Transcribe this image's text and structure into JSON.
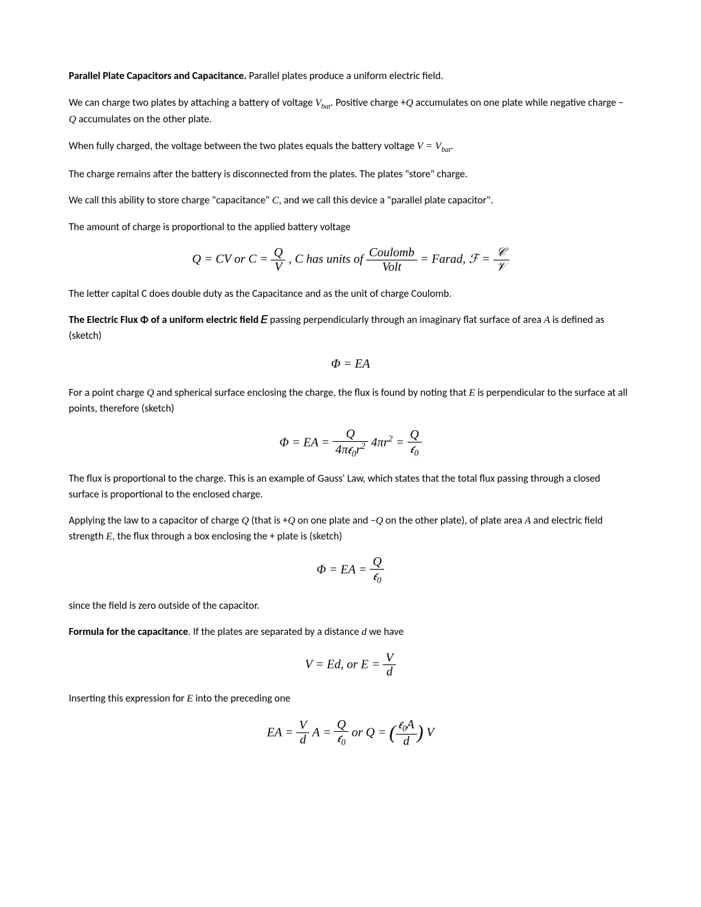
{
  "title_bold": "Parallel Plate Capacitors and Capacitance.",
  "title_rest": "  Parallel plates produce a uniform electric field.",
  "p1_a": "We can charge two plates by attaching a battery of voltage ",
  "p1_v": "V",
  "p1_sub": "bat",
  "p1_b": ".   Positive charge +",
  "p1_q": "Q",
  "p1_c": " accumulates on one plate while negative charge − ",
  "p1_d": " accumulates on the other plate.",
  "p2_a": "When fully charged, the voltage between the two plates equals the battery voltage ",
  "p2_eq": "V = V",
  "p2_b": ".",
  "p3": "The charge remains after the battery is disconnected from the plates.  The plates \"store\" charge.",
  "p4_a": "We call this ability to store charge \"capacitance\" ",
  "p4_c": "C",
  "p4_b": ", and we call this device a \"parallel plate capacitor\".",
  "p5": "The amount of charge is proportional to the applied battery voltage",
  "eq1_a": "Q = CV    or    C = ",
  "eq1_num1": "Q",
  "eq1_den1": "V",
  "eq1_mid": " ,       C has units of   ",
  "eq1_num2": "Coulomb",
  "eq1_den2": "Volt",
  "eq1_b": " = Farad,   ",
  "eq1_F": "ℱ",
  "eq1_c": " = ",
  "eq1_num3": "𝒞",
  "eq1_den3": "𝒱",
  "p6": "The letter capital C does double duty as the Capacitance and as the unit of charge Coulomb.",
  "p7_bold": "The Electric Flux Φ of a uniform electric field 𝐸",
  "p7_a": " passing perpendicularly through an imaginary flat surface of area ",
  "p7_A": "A",
  "p7_b": " is defined as (sketch)",
  "eq2": "Φ = EA",
  "p8_a": "For a point charge ",
  "p8_Q": "Q",
  "p8_b": " and spherical surface enclosing the charge, the flux is found by noting that ",
  "p8_E": "E",
  "p8_c": " is perpendicular to the surface at all points, therefore (sketch)",
  "eq3_a": "Φ = EA = ",
  "eq3_num1": "Q",
  "eq3_den1a": "4π𝜖",
  "eq3_den1b": "r",
  "eq3_mid": " 4πr",
  "eq3_sup": "2",
  "eq3_b": " = ",
  "eq3_num2": "Q",
  "eq3_den2a": "𝜖",
  "p9": "The flux is proportional to the charge.  This is an example of Gauss' Law, which states that the total flux passing through a closed surface is proportional to the enclosed charge.",
  "p10_a": "Applying the law to a capacitor of charge ",
  "p10_Q": "Q",
  "p10_b": " (that is +",
  "p10_c": " on one plate and −",
  "p10_d": " on the other plate), of plate area ",
  "p10_A": "A",
  "p10_e": " and electric field strength ",
  "p10_E": "E",
  "p10_f": ", the flux through a box enclosing the + plate is (sketch)",
  "eq4_a": "Φ = EA = ",
  "eq4_num": "Q",
  "eq4_den": "𝜖",
  "p11": "since the field is zero outside of the capacitor.",
  "p12_bold": "Formula for the capacitance",
  "p12_a": ".  If the plates are separated by a distance ",
  "p12_d": "d",
  "p12_b": " we have",
  "eq5_a": "V = Ed,       or E = ",
  "eq5_num": "V",
  "eq5_den": "d",
  "p13_a": "Inserting this expression for ",
  "p13_E": "E",
  "p13_b": " into the preceding one",
  "eq6_a": "EA = ",
  "eq6_num1": "V",
  "eq6_den1": "d",
  "eq6_mid1": " A = ",
  "eq6_num2": "Q",
  "eq6_den2": "𝜖",
  "eq6_mid2": "     or     Q = ",
  "eq6_lp": "(",
  "eq6_num3a": "𝜖",
  "eq6_num3b": "A",
  "eq6_den3": "d",
  "eq6_rp": ")",
  "eq6_end": " V",
  "sub0": "0"
}
